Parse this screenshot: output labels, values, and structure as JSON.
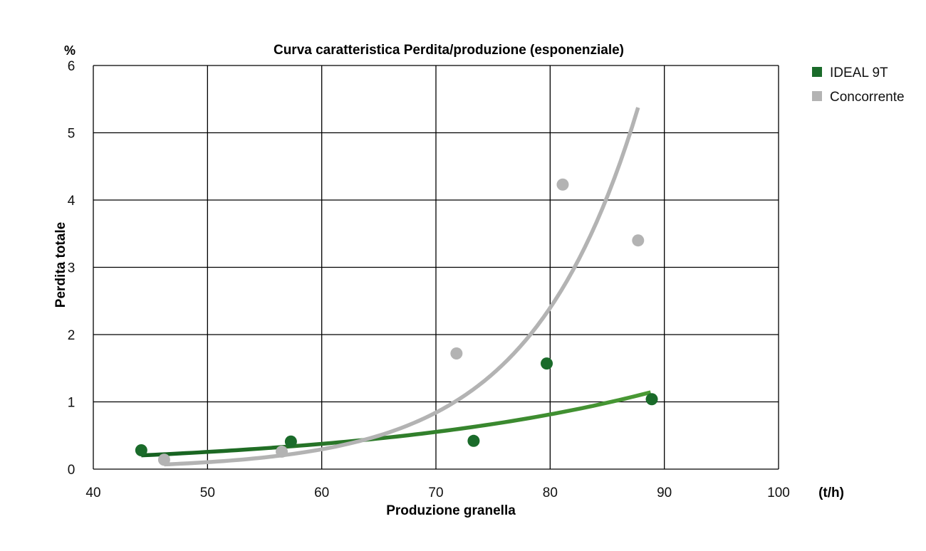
{
  "chart_data": {
    "type": "scatter",
    "title": "Curva caratteristica Perdita/produzione (esponenziale)",
    "xlabel": "Produzione granella",
    "x_unit": "(t/h)",
    "ylabel": "Perdita totale",
    "y_unit": "%",
    "xlim": [
      40,
      100
    ],
    "ylim": [
      0,
      6
    ],
    "x_ticks": [
      "40",
      "50",
      "60",
      "70",
      "80",
      "90",
      "100"
    ],
    "y_ticks": [
      "0",
      "1",
      "2",
      "3",
      "4",
      "5",
      "6"
    ],
    "grid": true,
    "legend_position": "right",
    "series": [
      {
        "name": "IDEAL 9T",
        "color": "#1a6b2a",
        "curve_color_start": "#146020",
        "curve_color_end": "#4a9a35",
        "points": [
          {
            "x": 44.2,
            "y": 0.28
          },
          {
            "x": 57.3,
            "y": 0.41
          },
          {
            "x": 73.3,
            "y": 0.42
          },
          {
            "x": 79.7,
            "y": 1.57
          },
          {
            "x": 88.9,
            "y": 1.04
          }
        ],
        "trend": {
          "type": "exponential",
          "a": 0.0371,
          "b": 0.0386,
          "x_range": [
            44.2,
            88.8
          ]
        }
      },
      {
        "name": "Concorrente",
        "color": "#b3b3b3",
        "points": [
          {
            "x": 46.2,
            "y": 0.14
          },
          {
            "x": 56.5,
            "y": 0.26
          },
          {
            "x": 71.8,
            "y": 1.72
          },
          {
            "x": 81.1,
            "y": 4.23
          },
          {
            "x": 87.7,
            "y": 3.4
          }
        ],
        "trend": {
          "type": "exponential",
          "a": 0.000548,
          "b": 0.1048,
          "x_range": [
            46.2,
            87.7
          ]
        }
      }
    ]
  }
}
